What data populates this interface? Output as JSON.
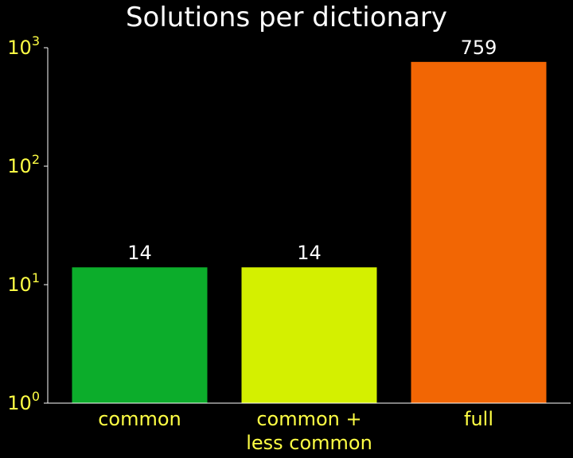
{
  "chart_data": {
    "type": "bar",
    "title": "Solutions per dictionary",
    "xlabel": "",
    "ylabel": "",
    "yscale": "log",
    "ylim": [
      1,
      1000
    ],
    "yticks": [
      {
        "value": 1,
        "base": "10",
        "exp": "0"
      },
      {
        "value": 10,
        "base": "10",
        "exp": "1"
      },
      {
        "value": 100,
        "base": "10",
        "exp": "2"
      },
      {
        "value": 1000,
        "base": "10",
        "exp": "3"
      }
    ],
    "categories": [
      [
        "common"
      ],
      [
        "common +",
        "less common"
      ],
      [
        "full"
      ]
    ],
    "values": [
      14,
      14,
      759
    ],
    "data_labels": [
      "14",
      "14",
      "759"
    ],
    "bar_colors": [
      "#0cad2b",
      "#d4f000",
      "#f26604"
    ],
    "grid": false,
    "legend": "none"
  },
  "colors": {
    "background": "#000000",
    "title": "#ffffff",
    "axis": "#ffffff",
    "tick_label": "#ffff44",
    "category_label": "#ffff44",
    "data_label": "#ffffff"
  }
}
